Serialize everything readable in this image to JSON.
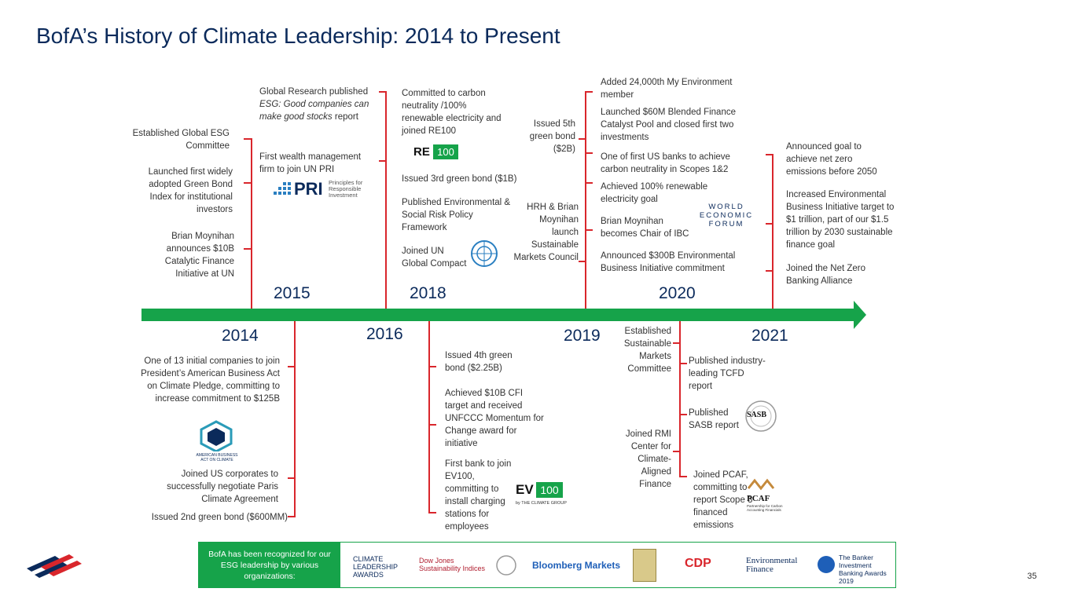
{
  "title": "BofA’s History of Climate Leadership: 2014 to Present",
  "page_number": "35",
  "years": [
    "2014",
    "2015",
    "2016",
    "2018",
    "2019",
    "2020",
    "2021"
  ],
  "above": {
    "y2015_left": {
      "a": "Established Global ESG Committee",
      "b": "Launched first widely adopted Green Bond Index for institutional investors",
      "c": "Brian Moynihan announces $10B Catalytic Finance Initiative at UN"
    },
    "y2015_right": {
      "a1": "Global Research published",
      "a2": "ESG: Good companies can make good stocks",
      "a3": " report",
      "b": "First wealth management firm to join UN PRI"
    },
    "y2018": {
      "a": "Committed to carbon neutrality /100% renewable electricity and joined RE100",
      "b": "Issued 3rd green bond ($1B)",
      "c": "Published Environmental & Social Risk Policy Framework",
      "d": "Joined UN Global Compact"
    },
    "y2019_top": {
      "a": "Issued 5th green bond ($2B)",
      "b": "HRH & Brian Moynihan launch Sustainable Markets Council"
    },
    "y2020": {
      "a": "Added 24,000th My Environment member",
      "b": "Launched $60M Blended Finance Catalyst Pool and closed first two investments",
      "c": "One of first US banks to achieve carbon neutrality in Scopes 1&2",
      "d": "Achieved 100% renewable electricity goal",
      "e": "Brian Moynihan becomes Chair of IBC",
      "f": "Announced $300B Environmental Business Initiative commitment"
    },
    "y2021_top": {
      "a": "Announced goal to achieve net zero emissions before 2050",
      "b": "Increased Environmental Business Initiative target to $1 trillion, part of our $1.5 trillion by 2030 sustainable finance goal",
      "c": "Joined the Net Zero Banking Alliance"
    }
  },
  "below": {
    "y2014": {
      "a": "One of 13 initial companies to join President’s American Business Act on Climate Pledge, committing to increase commitment to $125B",
      "b": "Joined US corporates to successfully negotiate Paris Climate Agreement",
      "c": "Issued 2nd green bond ($600MM)"
    },
    "y2016": {
      "a": "Issued 4th green bond ($2.25B)",
      "b": "Achieved $10B CFI target and received UNFCCC Momentum for Change award for initiative",
      "c": "First bank to join EV100, committing to install charging stations for employees"
    },
    "y2019": {
      "a": "Established Sustainable Markets Committee",
      "b": "Joined RMI Center for Climate-Aligned Finance"
    },
    "y2021": {
      "a": "Published industry-leading TCFD report",
      "b": "Published SASB report",
      "c": "Joined PCAF, committing to report Scope 3 financed emissions"
    }
  },
  "logos": {
    "pri_main": "PRI",
    "pri_sub": "Principles for Responsible Investment",
    "re100_a": "RE",
    "re100_b": "100",
    "wef": "WORLD ECONOMIC FORUM",
    "ev100_a": "EV",
    "ev100_b": "100",
    "ev100_sub": "by THE CLIMATE GROUP",
    "sasb": "SASB",
    "pcaf": "PCAF",
    "pcaf_sub": "Partnership for Carbon Accounting Financials",
    "actonclimate": "AMERICAN BUSINESS ACT ON CLIMATE"
  },
  "recognition": {
    "label": "BofA has been recognized for our ESG leadership by various organizations:",
    "orgs": [
      "CLIMATE LEADERSHIP AWARDS",
      "Dow Jones Sustainability Indices",
      "Bloomberg Markets",
      "CDP",
      "Environmental Finance",
      "The Banker Investment Banking Awards 2019"
    ]
  },
  "colors": {
    "accent_green": "#16a34a",
    "accent_red": "#d9262c",
    "title_navy": "#0b2a5b"
  }
}
